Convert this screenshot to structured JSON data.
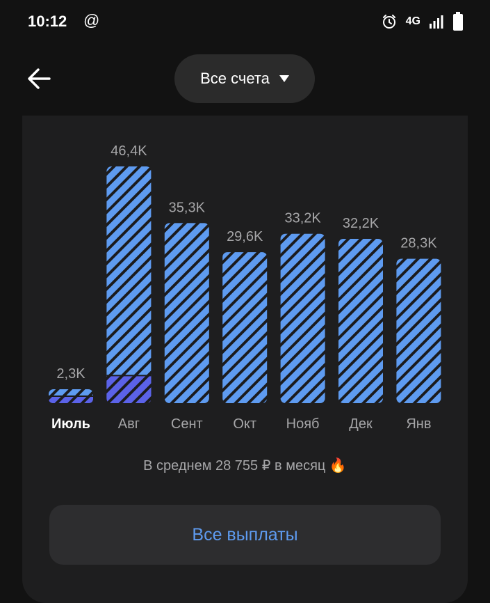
{
  "status_bar": {
    "time": "10:12",
    "at_symbol": "@",
    "network": "4G"
  },
  "header": {
    "account_selector": "Все счета"
  },
  "chart_data": {
    "type": "bar",
    "categories": [
      "Июль",
      "Авг",
      "Сент",
      "Окт",
      "Нояб",
      "Дек",
      "Янв"
    ],
    "value_labels": [
      "2,3K",
      "46,4K",
      "35,3K",
      "29,6K",
      "33,2K",
      "32,2K",
      "28,3K"
    ],
    "values": [
      2300,
      46400,
      35300,
      29600,
      33200,
      32200,
      28300
    ],
    "current_month_values": [
      1200,
      5400,
      0,
      0,
      0,
      0,
      0
    ],
    "highlighted_category": "Июль",
    "colors": {
      "bar": "#5e9bf0",
      "current": "#5b62e8",
      "stripe": "#1b1b1d"
    }
  },
  "summary": {
    "average_text": "В среднем 28 755 ₽ в месяц",
    "emoji": "🔥"
  },
  "actions": {
    "all_payouts_label": "Все выплаты"
  }
}
